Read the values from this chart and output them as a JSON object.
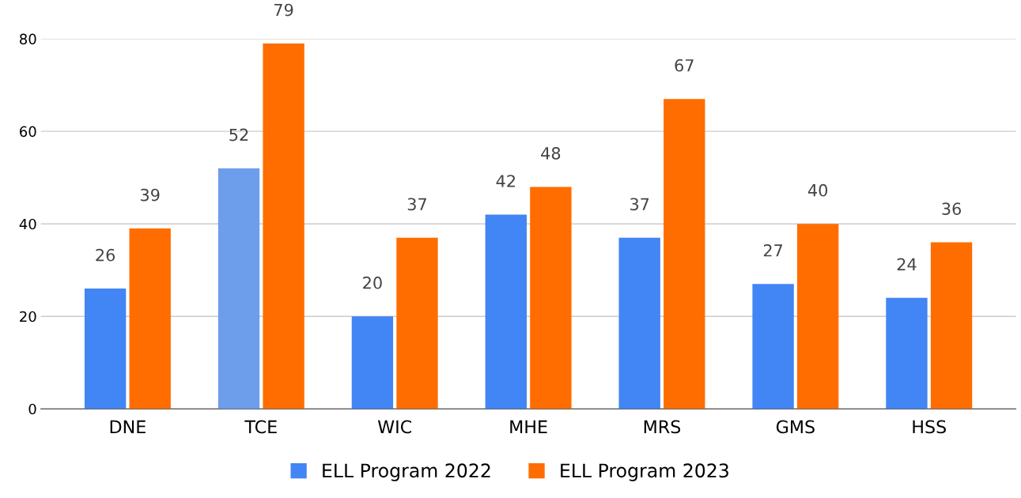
{
  "chart_data": {
    "type": "bar",
    "categories": [
      "DNE",
      "TCE",
      "WIC",
      "MHE",
      "MRS",
      "GMS",
      "HSS"
    ],
    "series": [
      {
        "name": "ELL Program 2022",
        "color": "#4285f4",
        "colors": [
          "#4285f4",
          "#6d9eeb",
          "#4285f4",
          "#4285f4",
          "#4285f4",
          "#4285f4",
          "#4285f4"
        ],
        "values": [
          26,
          52,
          20,
          42,
          37,
          27,
          24
        ]
      },
      {
        "name": "ELL Program 2023",
        "color": "#ff6d01",
        "values": [
          39,
          79,
          37,
          48,
          67,
          40,
          36
        ]
      }
    ],
    "ylim": [
      0,
      80
    ],
    "yticks": [
      0,
      20,
      40,
      60,
      80
    ],
    "grid": "y",
    "legend": "bottom",
    "data_labels": true
  }
}
